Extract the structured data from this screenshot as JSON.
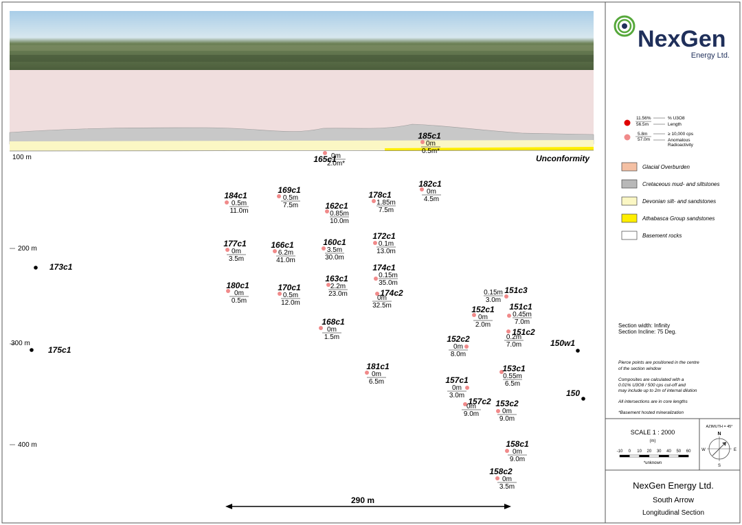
{
  "company": {
    "logo_main": "NexGen",
    "logo_sub": "Energy Ltd."
  },
  "section": {
    "unconformity_label": "Unconformity",
    "distance_label": "290 m"
  },
  "depth_labels": [
    "100 m",
    "200 m",
    "300 m",
    "400 m"
  ],
  "holes": [
    {
      "name": "185c1",
      "v1": "0m",
      "v2": "0.5m*",
      "kind": "anom"
    },
    {
      "name": "165c1",
      "v1": "0m",
      "v2": "2.0m*",
      "kind": "anom"
    },
    {
      "name": "184c1",
      "v1": "0.5m",
      "v2": "11.0m",
      "kind": "anom"
    },
    {
      "name": "169c1",
      "v1": "0.5m",
      "v2": "7.5m",
      "kind": "anom"
    },
    {
      "name": "162c1",
      "v1": "0.85m",
      "v2": "10.0m",
      "kind": "anom"
    },
    {
      "name": "178c1",
      "v1": "1.85m",
      "v2": "7.5m",
      "kind": "anom"
    },
    {
      "name": "182c1",
      "v1": "0m",
      "v2": "4.5m",
      "kind": "anom"
    },
    {
      "name": "177c1",
      "v1": "0m",
      "v2": "3.5m",
      "kind": "anom"
    },
    {
      "name": "166c1",
      "v1": "6.2m",
      "v2": "41.0m",
      "kind": "anom"
    },
    {
      "name": "160c1",
      "v1": "3.5m",
      "v2": "30.0m",
      "kind": "anom"
    },
    {
      "name": "172c1",
      "v1": "0.1m",
      "v2": "13.0m",
      "kind": "anom"
    },
    {
      "name": "174c1",
      "v1": "0.15m",
      "v2": "35.0m",
      "kind": "anom"
    },
    {
      "name": "180c1",
      "v1": "0m",
      "v2": "0.5m",
      "kind": "anom"
    },
    {
      "name": "170c1",
      "v1": "0.5m",
      "v2": "12.0m",
      "kind": "anom"
    },
    {
      "name": "163c1",
      "v1": "2.2m",
      "v2": "23.0m",
      "kind": "anom"
    },
    {
      "name": "174c2",
      "v1": "0m",
      "v2": "32.5m",
      "kind": "anom"
    },
    {
      "name": "151c3",
      "v1": "0.15m",
      "v2": "3.0m",
      "kind": "anom"
    },
    {
      "name": "152c1",
      "v1": "0m",
      "v2": "2.0m",
      "kind": "anom"
    },
    {
      "name": "151c1",
      "v1": "0.45m",
      "v2": "7.0m",
      "kind": "anom"
    },
    {
      "name": "168c1",
      "v1": "0m",
      "v2": "1.5m",
      "kind": "anom"
    },
    {
      "name": "151c2",
      "v1": "0.2m",
      "v2": "7.0m",
      "kind": "anom"
    },
    {
      "name": "152c2",
      "v1": "0m",
      "v2": "8.0m",
      "kind": "anom"
    },
    {
      "name": "181c1",
      "v1": "0m",
      "v2": "6.5m",
      "kind": "anom"
    },
    {
      "name": "153c1",
      "v1": "0.55m",
      "v2": "6.5m",
      "kind": "anom"
    },
    {
      "name": "157c1",
      "v1": "0m",
      "v2": "3.0m",
      "kind": "anom"
    },
    {
      "name": "157c2",
      "v1": "0m",
      "v2": "9.0m",
      "kind": "anom"
    },
    {
      "name": "153c2",
      "v1": "0m",
      "v2": "9.0m",
      "kind": "anom"
    },
    {
      "name": "158c1",
      "v1": "0m",
      "v2": "9.0m",
      "kind": "anom"
    },
    {
      "name": "158c2",
      "v1": "0m",
      "v2": "3.5m",
      "kind": "anom"
    },
    {
      "name": "173c1",
      "v1": "",
      "v2": "",
      "kind": "none"
    },
    {
      "name": "175c1",
      "v1": "",
      "v2": "",
      "kind": "none"
    },
    {
      "name": "150w1",
      "v1": "",
      "v2": "",
      "kind": "none"
    },
    {
      "name": "150",
      "v1": "",
      "v2": "",
      "kind": "none"
    }
  ],
  "key": {
    "red_v1": "11.56%",
    "red_v2": "56.5m",
    "red_d1": "% U3O8",
    "red_d2": "Length",
    "pink_v1": "5.8m",
    "pink_v2": "57.0m",
    "pink_d1": "≥ 10,000 cps",
    "pink_d2": "Anomalous",
    "pink_d3": "Radioactivity"
  },
  "legend": [
    {
      "label": "Glacial Overburden",
      "color": "#f4c0a4"
    },
    {
      "label": "Cretaceous mud- and siltstones",
      "color": "#b8b8b8"
    },
    {
      "label": "Devonian silt- and sandstones",
      "color": "#fbf7c4"
    },
    {
      "label": "Athabasca Group sandstones",
      "color": "#ffee00"
    },
    {
      "label": "Basement rocks",
      "color": "#ffffff"
    }
  ],
  "section_info": {
    "width": "Section width: Infinity",
    "incline": "Section Incline: 75 Deg."
  },
  "notes": {
    "n1a": "Pierce points are positioned in the centre",
    "n1b": "of the section window",
    "n2a": "Composites are calculated with a",
    "n2b": "0.01% U3O8 / 500 cps cut-off and",
    "n2c": "may include up to 2m of internal dilution",
    "n3": "All intersections are in core lengths",
    "n4": "*Basement hosted mineralization"
  },
  "scale": {
    "label": "SCALE  1 : 2000",
    "unit": "(m)",
    "ticks": [
      "-10",
      "0",
      "10",
      "20",
      "30",
      "40",
      "50",
      "60"
    ],
    "unknown": "*unknown"
  },
  "compass": {
    "azimuth": "AZIMUTH = 45°",
    "n": "N",
    "s": "S",
    "e": "E",
    "w": "W"
  },
  "title_block": {
    "company": "NexGen Energy Ltd.",
    "project": "South Arrow",
    "section": "Longitudinal Section"
  },
  "colors": {
    "red": "#e00000",
    "pink": "#f08a8a",
    "basement_point": "#000000",
    "glacial": "#f0d4d2",
    "cretaceous": "#c8c8c8"
  }
}
